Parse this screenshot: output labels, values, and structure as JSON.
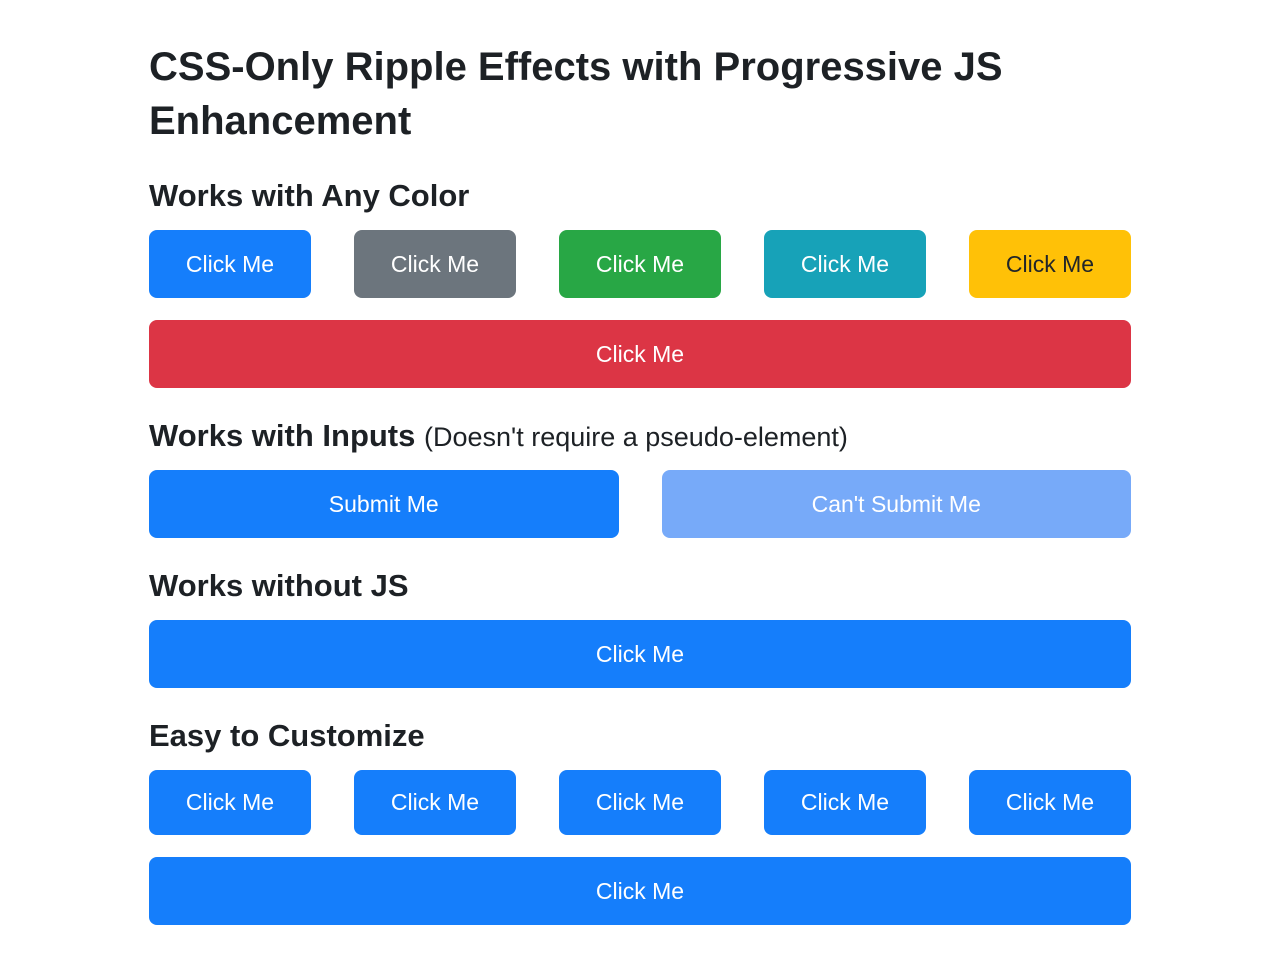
{
  "page": {
    "title": "CSS-Only Ripple Effects with Progressive JS Enhancement"
  },
  "colors": {
    "blue": "#157efb",
    "gray": "#6c757d",
    "green": "#28a745",
    "teal": "#17a2b8",
    "yellow": "#ffc107",
    "red": "#dc3545",
    "disabled_blue": "#77aaf9"
  },
  "sections": {
    "any_color": {
      "heading": "Works with Any Color",
      "buttons": [
        {
          "label": "Click Me",
          "color": "blue"
        },
        {
          "label": "Click Me",
          "color": "gray"
        },
        {
          "label": "Click Me",
          "color": "green"
        },
        {
          "label": "Click Me",
          "color": "teal"
        },
        {
          "label": "Click Me",
          "color": "yellow"
        }
      ],
      "full_button": {
        "label": "Click Me",
        "color": "red"
      }
    },
    "inputs": {
      "heading": "Works with Inputs",
      "subheading": "(Doesn't require a pseudo-element)",
      "submit_button": {
        "label": "Submit Me",
        "state": "enabled"
      },
      "disabled_button": {
        "label": "Can't Submit Me",
        "state": "disabled"
      }
    },
    "no_js": {
      "heading": "Works without JS",
      "full_button": {
        "label": "Click Me",
        "color": "blue"
      }
    },
    "customize": {
      "heading": "Easy to Customize",
      "buttons": [
        "Click Me",
        "Click Me",
        "Click Me",
        "Click Me",
        "Click Me"
      ],
      "full_button": {
        "label": "Click Me",
        "color": "blue"
      }
    }
  }
}
